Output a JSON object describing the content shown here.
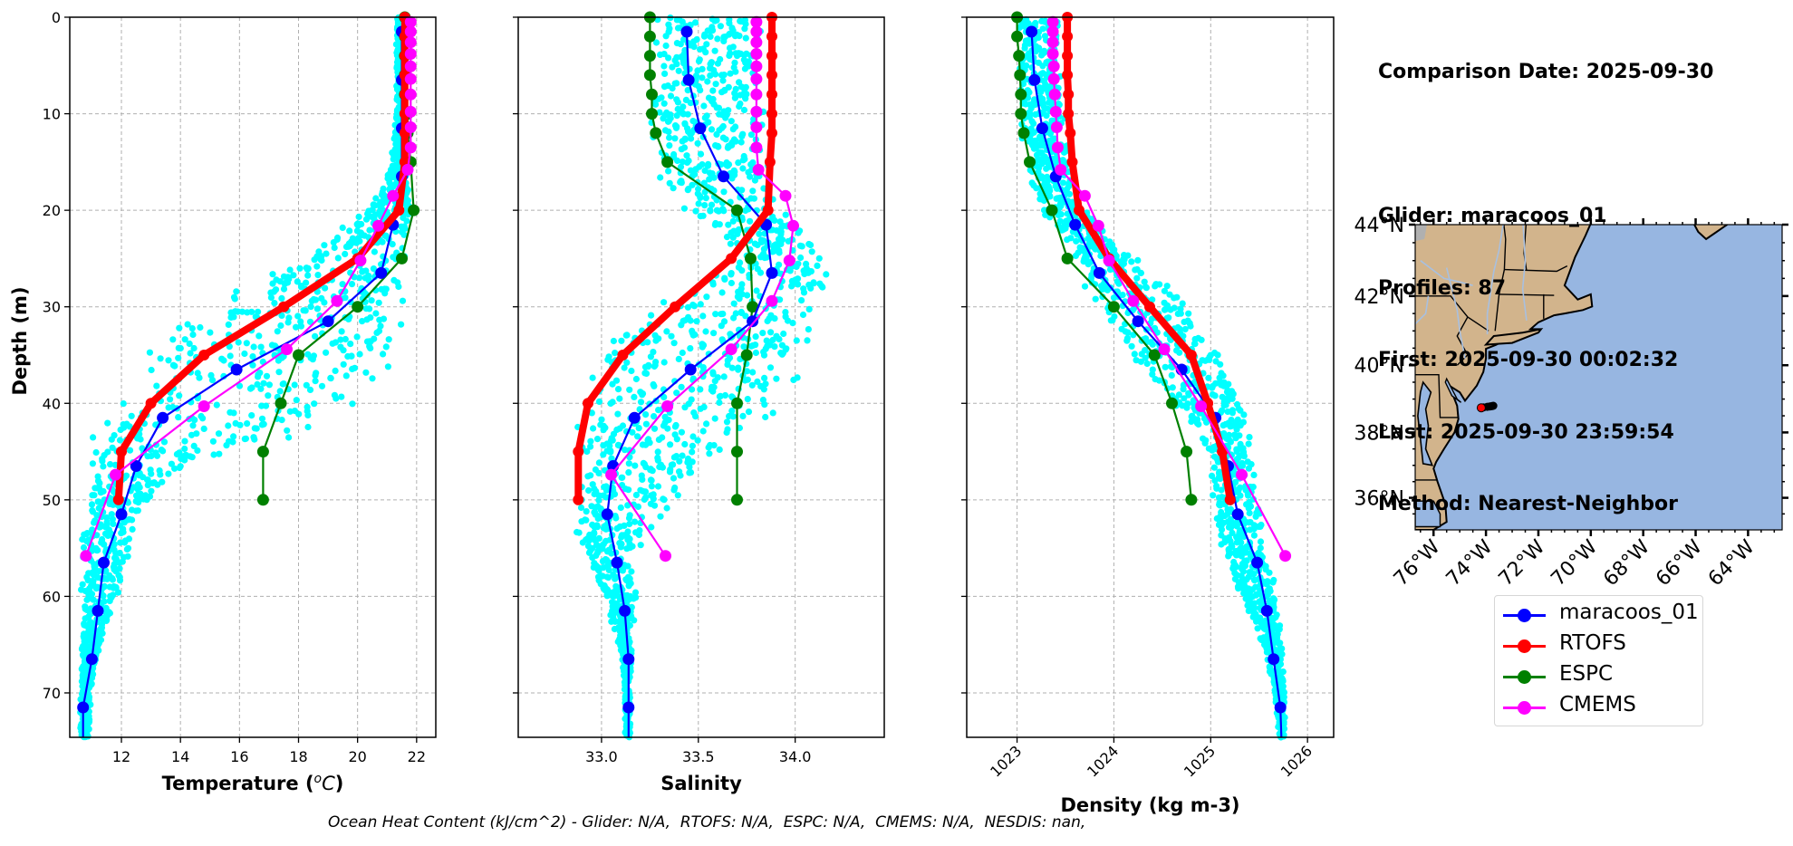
{
  "info": {
    "comparison_date": "Comparison Date: 2025-09-30",
    "glider": "Glider: maracoos_01",
    "profiles": "Profiles: 87",
    "first": "First: 2025-09-30 00:02:32",
    "last": "Last: 2025-09-30 23:59:54",
    "method": "Method: Nearest-Neighbor"
  },
  "footer": "Ocean Heat Content (kJ/cm^2) - Glider: N/A,  RTOFS: N/A,  ESPC: N/A,  CMEMS: N/A,  NESDIS: nan,",
  "legend": [
    {
      "label": "maracoos_01",
      "color": "#0000ff"
    },
    {
      "label": "RTOFS",
      "color": "#ff0000"
    },
    {
      "label": "ESPC",
      "color": "#008000"
    },
    {
      "label": "CMEMS",
      "color": "#ff00ff"
    }
  ],
  "colors": {
    "scatter": "#00ffff",
    "glider": "#0000ff",
    "rtofs": "#ff0000",
    "espc": "#008000",
    "cmems": "#ff00ff",
    "land": "#d2b48c",
    "ocean": "#97b6e1",
    "lakes": "#a8c0e0"
  },
  "chart_data": [
    {
      "type": "line",
      "title": "",
      "xlabel": "Temperature (°C)",
      "ylabel": "Depth (m)",
      "xlim": [
        10.25,
        22.65
      ],
      "ylim": [
        74.6,
        0
      ],
      "xticks": [
        12,
        14,
        16,
        18,
        20,
        22
      ],
      "yticks": [
        0,
        10,
        20,
        30,
        40,
        50,
        60,
        70
      ],
      "grid": true,
      "scatter_envelope": {
        "name": "glider profiles (all)",
        "depth": [
          0,
          10,
          15,
          18,
          20,
          22,
          25,
          28,
          30,
          33,
          36,
          40,
          43,
          46,
          50,
          53,
          56,
          60,
          63,
          66,
          70,
          74.6
        ],
        "min": [
          21.3,
          21.3,
          21.1,
          20.8,
          20.2,
          19.3,
          17.8,
          16.0,
          14.8,
          13.4,
          12.3,
          11.2,
          10.9,
          10.8,
          10.7,
          10.6,
          10.6,
          10.6,
          10.6,
          10.6,
          10.6,
          10.6
        ],
        "max": [
          21.6,
          21.6,
          21.7,
          21.8,
          21.9,
          22.0,
          22.0,
          21.9,
          21.8,
          21.7,
          21.5,
          20.4,
          18.5,
          14.5,
          13.0,
          12.5,
          12.4,
          11.9,
          11.5,
          11.2,
          11.0,
          10.9
        ]
      },
      "series": [
        {
          "name": "maracoos_01",
          "depth": [
            1.5,
            6.5,
            11.5,
            16.5,
            21.5,
            26.5,
            31.5,
            36.5,
            41.5,
            46.5,
            51.5,
            56.5,
            61.5,
            66.5,
            71.5,
            74.6
          ],
          "values": [
            21.5,
            21.5,
            21.5,
            21.5,
            21.2,
            20.8,
            19.0,
            15.9,
            13.4,
            12.5,
            12.0,
            11.4,
            11.2,
            11.0,
            10.7,
            10.7
          ]
        },
        {
          "name": "RTOFS",
          "depth": [
            0,
            2,
            4,
            6,
            8,
            10,
            12,
            15,
            20,
            25,
            30,
            35,
            40,
            45,
            50
          ],
          "values": [
            21.6,
            21.6,
            21.6,
            21.6,
            21.6,
            21.6,
            21.6,
            21.6,
            21.4,
            20.0,
            17.5,
            14.8,
            13.0,
            12.0,
            11.9
          ]
        },
        {
          "name": "ESPC",
          "depth": [
            0,
            2,
            4,
            6,
            8,
            10,
            12,
            15,
            20,
            25,
            30,
            35,
            40,
            45,
            50
          ],
          "values": [
            21.6,
            21.6,
            21.6,
            21.6,
            21.6,
            21.7,
            21.7,
            21.8,
            21.9,
            21.5,
            20.0,
            18.0,
            17.4,
            16.8,
            16.8
          ]
        },
        {
          "name": "CMEMS",
          "depth": [
            0.5,
            1.5,
            2.6,
            3.8,
            5.1,
            6.4,
            8.0,
            9.8,
            11.4,
            13.5,
            15.8,
            18.5,
            21.6,
            25.2,
            29.4,
            34.4,
            40.3,
            47.4,
            55.8
          ],
          "values": [
            21.8,
            21.8,
            21.8,
            21.8,
            21.8,
            21.8,
            21.8,
            21.8,
            21.8,
            21.8,
            21.7,
            21.2,
            20.7,
            20.1,
            19.3,
            17.6,
            14.8,
            11.8,
            10.8
          ]
        }
      ]
    },
    {
      "type": "line",
      "title": "",
      "xlabel": "Salinity",
      "ylabel": "",
      "xlim": [
        32.57,
        34.46
      ],
      "ylim": [
        74.6,
        0
      ],
      "xticks": [
        33.0,
        33.5,
        34.0
      ],
      "yticks": [
        0,
        10,
        20,
        30,
        40,
        50,
        60,
        70
      ],
      "grid": true,
      "scatter_envelope": {
        "name": "glider profiles (all)",
        "depth": [
          0,
          5,
          10,
          15,
          18,
          20,
          22,
          25,
          28,
          30,
          33,
          36,
          40,
          43,
          46,
          50,
          53,
          56,
          60,
          63,
          66,
          70,
          74.6
        ],
        "min": [
          33.25,
          33.25,
          33.25,
          33.27,
          33.3,
          33.4,
          33.6,
          33.7,
          33.4,
          33.2,
          33.05,
          32.95,
          32.85,
          32.85,
          32.85,
          32.85,
          32.85,
          32.9,
          33.0,
          33.05,
          33.1,
          33.12,
          33.12
        ],
        "max": [
          33.85,
          33.85,
          33.85,
          33.88,
          33.92,
          33.98,
          34.05,
          34.15,
          34.2,
          34.1,
          34.1,
          34.05,
          34.0,
          33.75,
          33.6,
          33.4,
          33.25,
          33.2,
          33.18,
          33.17,
          33.16,
          33.15,
          33.15
        ]
      },
      "series": [
        {
          "name": "maracoos_01",
          "depth": [
            1.5,
            6.5,
            11.5,
            16.5,
            21.5,
            26.5,
            31.5,
            36.5,
            41.5,
            46.5,
            51.5,
            56.5,
            61.5,
            66.5,
            71.5,
            74.6
          ],
          "values": [
            33.44,
            33.45,
            33.51,
            33.63,
            33.85,
            33.88,
            33.78,
            33.46,
            33.17,
            33.06,
            33.03,
            33.08,
            33.12,
            33.14,
            33.14,
            33.14
          ]
        },
        {
          "name": "RTOFS",
          "depth": [
            0,
            2,
            4,
            6,
            8,
            10,
            12,
            15,
            20,
            25,
            30,
            35,
            40,
            45,
            50
          ],
          "values": [
            33.88,
            33.88,
            33.88,
            33.88,
            33.88,
            33.88,
            33.88,
            33.87,
            33.86,
            33.67,
            33.38,
            33.11,
            32.93,
            32.88,
            32.88
          ]
        },
        {
          "name": "ESPC",
          "depth": [
            0,
            2,
            4,
            6,
            8,
            10,
            12,
            15,
            20,
            25,
            30,
            35,
            40,
            45,
            50
          ],
          "values": [
            33.25,
            33.25,
            33.25,
            33.25,
            33.26,
            33.26,
            33.28,
            33.34,
            33.7,
            33.77,
            33.78,
            33.75,
            33.7,
            33.7,
            33.7
          ]
        },
        {
          "name": "CMEMS",
          "depth": [
            0.5,
            1.5,
            2.6,
            3.8,
            5.1,
            6.4,
            8.0,
            9.8,
            11.4,
            13.5,
            15.8,
            18.5,
            21.6,
            25.2,
            29.4,
            34.4,
            40.3,
            47.4,
            55.8
          ],
          "values": [
            33.8,
            33.8,
            33.8,
            33.8,
            33.8,
            33.8,
            33.8,
            33.8,
            33.8,
            33.8,
            33.81,
            33.95,
            33.99,
            33.97,
            33.88,
            33.67,
            33.34,
            33.05,
            33.33
          ]
        }
      ]
    },
    {
      "type": "line",
      "title": "",
      "xlabel": "Density (kg m-3)",
      "ylabel": "",
      "xlim": [
        1022.48,
        1026.27
      ],
      "ylim": [
        74.6,
        0
      ],
      "xticks": [
        1023,
        1024,
        1025,
        1026
      ],
      "yticks": [
        0,
        10,
        20,
        30,
        40,
        50,
        60,
        70
      ],
      "grid": true,
      "scatter_envelope": {
        "name": "glider profiles (all)",
        "depth": [
          0,
          5,
          10,
          15,
          18,
          20,
          23,
          25,
          28,
          30,
          33,
          36,
          40,
          43,
          46,
          50,
          53,
          56,
          60,
          63,
          66,
          70,
          74.6
        ],
        "min": [
          1023.0,
          1023.0,
          1023.0,
          1023.05,
          1023.15,
          1023.25,
          1023.45,
          1023.55,
          1023.7,
          1023.8,
          1024.0,
          1024.2,
          1024.55,
          1024.85,
          1025.0,
          1025.0,
          1025.05,
          1025.15,
          1025.3,
          1025.45,
          1025.55,
          1025.65,
          1025.7
        ]
      },
      "scatter_envelope_max": [
        1023.45,
        1023.45,
        1023.5,
        1023.55,
        1023.6,
        1023.75,
        1024.0,
        1024.25,
        1024.6,
        1024.8,
        1025.0,
        1025.2,
        1025.35,
        1025.42,
        1025.45,
        1025.5,
        1025.55,
        1025.6,
        1025.7,
        1025.72,
        1025.75,
        1025.77,
        1025.77
      ],
      "series": [
        {
          "name": "maracoos_01",
          "depth": [
            1.5,
            6.5,
            11.5,
            16.5,
            21.5,
            26.5,
            31.5,
            36.5,
            41.5,
            46.5,
            51.5,
            56.5,
            61.5,
            66.5,
            71.5,
            74.6
          ],
          "values": [
            1023.15,
            1023.18,
            1023.26,
            1023.4,
            1023.6,
            1023.85,
            1024.25,
            1024.7,
            1025.05,
            1025.18,
            1025.28,
            1025.48,
            1025.58,
            1025.65,
            1025.72,
            1025.73
          ]
        },
        {
          "name": "RTOFS",
          "depth": [
            0,
            2,
            4,
            6,
            8,
            10,
            12,
            15,
            20,
            25,
            30,
            35,
            40,
            45,
            50
          ],
          "values": [
            1023.52,
            1023.52,
            1023.52,
            1023.52,
            1023.53,
            1023.53,
            1023.55,
            1023.57,
            1023.64,
            1023.95,
            1024.37,
            1024.8,
            1024.97,
            1025.12,
            1025.2
          ]
        },
        {
          "name": "ESPC",
          "depth": [
            0,
            2,
            4,
            6,
            8,
            10,
            12,
            15,
            20,
            25,
            30,
            35,
            40,
            45,
            50
          ],
          "values": [
            1023.0,
            1023.0,
            1023.02,
            1023.03,
            1023.04,
            1023.04,
            1023.07,
            1023.13,
            1023.36,
            1023.52,
            1024.0,
            1024.42,
            1024.6,
            1024.75,
            1024.8
          ]
        },
        {
          "name": "CMEMS",
          "depth": [
            0.5,
            1.5,
            2.6,
            3.8,
            5.1,
            6.4,
            8.0,
            9.8,
            11.4,
            13.5,
            15.8,
            18.5,
            21.6,
            25.2,
            29.4,
            34.4,
            40.3,
            47.4,
            55.8
          ],
          "values": [
            1023.37,
            1023.37,
            1023.37,
            1023.37,
            1023.38,
            1023.38,
            1023.39,
            1023.4,
            1023.41,
            1023.42,
            1023.45,
            1023.7,
            1023.84,
            1023.95,
            1024.2,
            1024.52,
            1024.9,
            1025.32,
            1025.77
          ]
        }
      ]
    },
    {
      "type": "scatter",
      "title": "",
      "xlabel": "",
      "ylabel": "",
      "xlim": [
        -76.7,
        -62.7
      ],
      "ylim": [
        35.0,
        44.0
      ],
      "xticks": [
        "76°W",
        "74°W",
        "72°W",
        "70°W",
        "68°W",
        "66°W",
        "64°W"
      ],
      "xtick_values": [
        -76,
        -74,
        -72,
        -70,
        -68,
        -66,
        -64
      ],
      "yticks": [
        "36°N",
        "38°N",
        "40°N",
        "42°N",
        "44°N"
      ],
      "ytick_values": [
        36,
        38,
        40,
        42,
        44
      ],
      "grid": false,
      "glider_track": {
        "lon": [
          -74.1,
          -73.95,
          -73.85,
          -73.78,
          -73.72
        ],
        "lat": [
          38.75,
          38.77,
          38.78,
          38.79,
          38.8
        ]
      },
      "glider_latest": {
        "lon": -74.18,
        "lat": 38.74
      }
    }
  ]
}
